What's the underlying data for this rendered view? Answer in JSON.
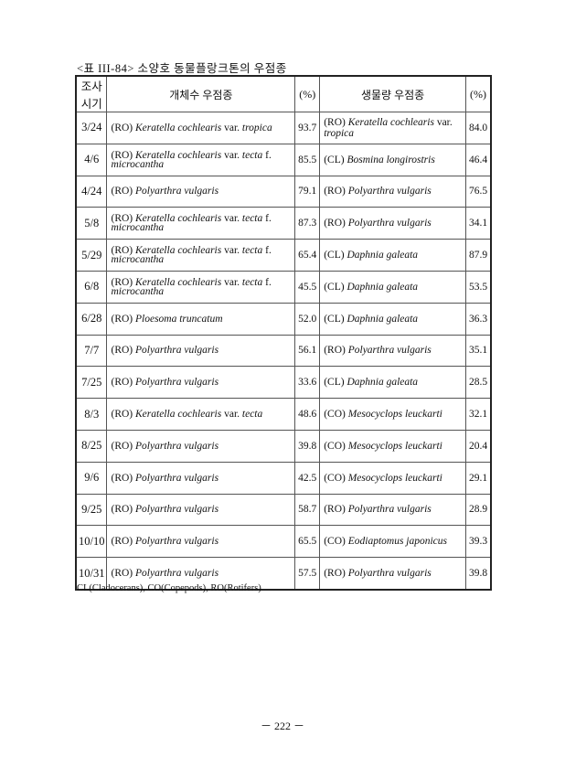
{
  "caption": "<표 III-84> 소양호 동물플랑크톤의 우점종",
  "headers": [
    "조사시기",
    "개체수 우점종",
    "(%)",
    "생물량 우점종",
    "(%)"
  ],
  "rows": [
    {
      "date": "3/24",
      "abund": [
        {
          "t": "(RO) "
        },
        {
          "t": "Keratella cochlearis",
          "i": 1
        },
        {
          "t": " var. "
        },
        {
          "t": "tropica",
          "i": 1
        }
      ],
      "abund_pct": "93.7",
      "bio": [
        {
          "t": "(RO) "
        },
        {
          "t": "Keratella cochlearis",
          "i": 1
        },
        {
          "t": " var. "
        },
        {
          "t": "tropica",
          "i": 1
        }
      ],
      "bio_pct": "84.0"
    },
    {
      "date": "4/6",
      "abund": [
        {
          "t": "(RO) "
        },
        {
          "t": "Keratella cochlearis",
          "i": 1
        },
        {
          "t": " var. "
        },
        {
          "t": "tecta",
          "i": 1
        },
        {
          "t": " f. "
        },
        {
          "t": "microcantha",
          "i": 1
        }
      ],
      "abund_pct": "85.5",
      "bio": [
        {
          "t": "(CL) "
        },
        {
          "t": "Bosmina longirostris",
          "i": 1
        }
      ],
      "bio_pct": "46.4"
    },
    {
      "date": "4/24",
      "abund": [
        {
          "t": "(RO) "
        },
        {
          "t": "Polyarthra vulgaris",
          "i": 1
        }
      ],
      "abund_pct": "79.1",
      "bio": [
        {
          "t": "(RO) "
        },
        {
          "t": "Polyarthra vulgaris",
          "i": 1
        }
      ],
      "bio_pct": "76.5"
    },
    {
      "date": "5/8",
      "abund": [
        {
          "t": "(RO) "
        },
        {
          "t": "Keratella cochlearis",
          "i": 1
        },
        {
          "t": " var. "
        },
        {
          "t": "tecta",
          "i": 1
        },
        {
          "t": " f. "
        },
        {
          "t": "microcantha",
          "i": 1
        }
      ],
      "abund_pct": "87.3",
      "bio": [
        {
          "t": "(RO) "
        },
        {
          "t": "Polyarthra vulgaris",
          "i": 1
        }
      ],
      "bio_pct": "34.1"
    },
    {
      "date": "5/29",
      "abund": [
        {
          "t": "(RO) "
        },
        {
          "t": "Keratella cochlearis",
          "i": 1
        },
        {
          "t": " var. "
        },
        {
          "t": "tecta",
          "i": 1
        },
        {
          "t": " f. "
        },
        {
          "t": "microcantha",
          "i": 1
        }
      ],
      "abund_pct": "65.4",
      "bio": [
        {
          "t": "(CL) "
        },
        {
          "t": "Daphnia galeata",
          "i": 1
        }
      ],
      "bio_pct": "87.9"
    },
    {
      "date": "6/8",
      "abund": [
        {
          "t": "(RO) "
        },
        {
          "t": "Keratella cochlearis",
          "i": 1
        },
        {
          "t": " var. "
        },
        {
          "t": "tecta",
          "i": 1
        },
        {
          "t": " f. "
        },
        {
          "t": "microcantha",
          "i": 1
        }
      ],
      "abund_pct": "45.5",
      "bio": [
        {
          "t": "(CL) "
        },
        {
          "t": "Daphnia galeata",
          "i": 1
        }
      ],
      "bio_pct": "53.5"
    },
    {
      "date": "6/28",
      "abund": [
        {
          "t": "(RO) "
        },
        {
          "t": "Ploesoma truncatum",
          "i": 1
        }
      ],
      "abund_pct": "52.0",
      "bio": [
        {
          "t": "(CL) "
        },
        {
          "t": "Daphnia galeata",
          "i": 1
        }
      ],
      "bio_pct": "36.3"
    },
    {
      "date": "7/7",
      "abund": [
        {
          "t": "(RO) "
        },
        {
          "t": "Polyarthra vulgaris",
          "i": 1
        }
      ],
      "abund_pct": "56.1",
      "bio": [
        {
          "t": "(RO) "
        },
        {
          "t": "Polyarthra vulgaris",
          "i": 1
        }
      ],
      "bio_pct": "35.1"
    },
    {
      "date": "7/25",
      "abund": [
        {
          "t": "(RO) "
        },
        {
          "t": "Polyarthra vulgaris",
          "i": 1
        }
      ],
      "abund_pct": "33.6",
      "bio": [
        {
          "t": "(CL) "
        },
        {
          "t": "Daphnia galeata",
          "i": 1
        }
      ],
      "bio_pct": "28.5"
    },
    {
      "date": "8/3",
      "abund": [
        {
          "t": "(RO) "
        },
        {
          "t": "Keratella cochlearis",
          "i": 1
        },
        {
          "t": " var. "
        },
        {
          "t": "tecta",
          "i": 1
        }
      ],
      "abund_pct": "48.6",
      "bio": [
        {
          "t": "(CO) "
        },
        {
          "t": "Mesocyclops leuckarti",
          "i": 1
        }
      ],
      "bio_pct": "32.1"
    },
    {
      "date": "8/25",
      "abund": [
        {
          "t": "(RO) "
        },
        {
          "t": "Polyarthra vulgaris",
          "i": 1
        }
      ],
      "abund_pct": "39.8",
      "bio": [
        {
          "t": "(CO) "
        },
        {
          "t": "Mesocyclops leuckarti",
          "i": 1
        }
      ],
      "bio_pct": "20.4"
    },
    {
      "date": "9/6",
      "abund": [
        {
          "t": "(RO) "
        },
        {
          "t": "Polyarthra vulgaris",
          "i": 1
        }
      ],
      "abund_pct": "42.5",
      "bio": [
        {
          "t": "(CO) "
        },
        {
          "t": "Mesocyclops leuckarti",
          "i": 1
        }
      ],
      "bio_pct": "29.1"
    },
    {
      "date": "9/25",
      "abund": [
        {
          "t": "(RO) "
        },
        {
          "t": "Polyarthra vulgaris",
          "i": 1
        }
      ],
      "abund_pct": "58.7",
      "bio": [
        {
          "t": "(RO) "
        },
        {
          "t": "Polyarthra vulgaris",
          "i": 1
        }
      ],
      "bio_pct": "28.9"
    },
    {
      "date": "10/10",
      "abund": [
        {
          "t": "(RO) "
        },
        {
          "t": "Polyarthra vulgaris",
          "i": 1
        }
      ],
      "abund_pct": "65.5",
      "bio": [
        {
          "t": "(CO) "
        },
        {
          "t": "Eodiaptomus japonicus",
          "i": 1
        }
      ],
      "bio_pct": "39.3"
    },
    {
      "date": "10/31",
      "abund": [
        {
          "t": "(RO) "
        },
        {
          "t": "Polyarthra vulgaris",
          "i": 1
        }
      ],
      "abund_pct": "57.5",
      "bio": [
        {
          "t": "(RO) "
        },
        {
          "t": "Polyarthra vulgaris",
          "i": 1
        }
      ],
      "bio_pct": "39.8"
    }
  ],
  "footnote": "CL(Cladocerans), CO(Copepods), RO(Rotifers)",
  "page_number": "－ 222 －"
}
